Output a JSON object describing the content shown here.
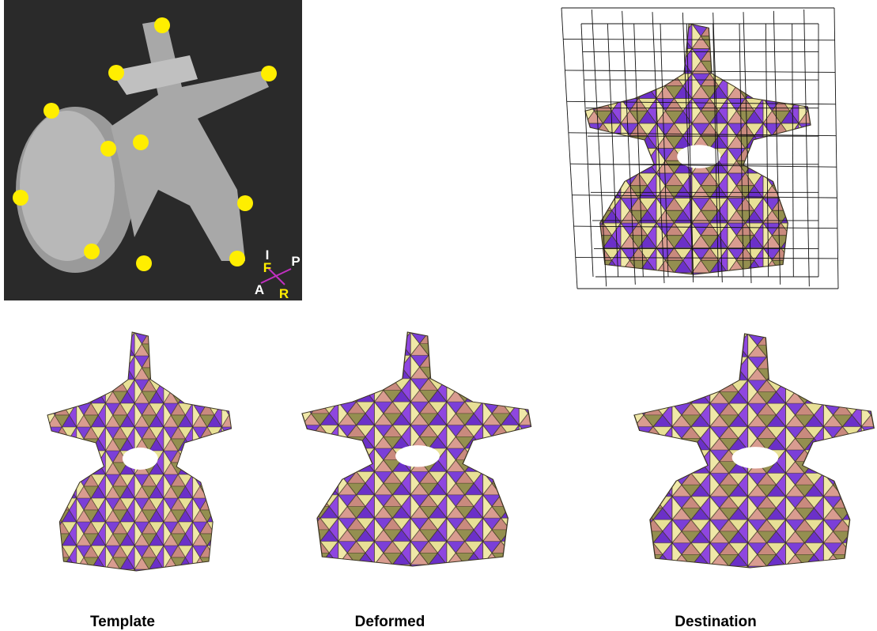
{
  "figure": {
    "orientation_labels": [
      "I",
      "F",
      "P",
      "A",
      "R"
    ],
    "captions": [
      "Template",
      "Deformed",
      "Destination"
    ]
  }
}
